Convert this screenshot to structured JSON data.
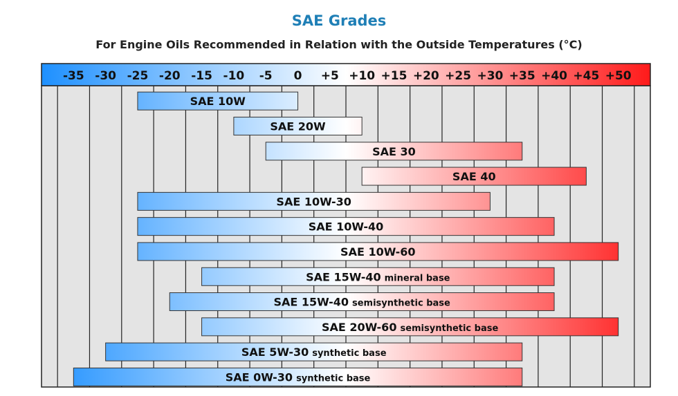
{
  "header": {
    "title": "SAE Grades",
    "subtitle": "For Engine Oils Recommended in Relation with the Outside Temperatures (°C)"
  },
  "chart_data": {
    "type": "bar",
    "orientation": "horizontal-range",
    "title": "SAE Grades",
    "subtitle": "For Engine Oils Recommended in Relation with the Outside Temperatures (°C)",
    "xlim": [
      -40,
      55
    ],
    "ticks": [
      -35,
      -30,
      -25,
      -20,
      -15,
      -10,
      -5,
      0,
      5,
      10,
      15,
      20,
      25,
      30,
      35,
      40,
      45,
      50
    ],
    "tick_labels": [
      "-35",
      "-30",
      "-25",
      "-20",
      "-15",
      "-10",
      "-5",
      "0",
      "+5",
      "+10",
      "+15",
      "+20",
      "+25",
      "+30",
      "+35",
      "+40",
      "+45",
      "+50"
    ],
    "grid": true,
    "colors": {
      "cold": "#1e90ff",
      "neutral": "#ffffff",
      "hot": "#ff1a1a",
      "grid_fill": "#e4e4e4",
      "title": "#1f7fb6"
    },
    "series": [
      {
        "name": "SAE 10W",
        "qualifier": "",
        "min": -25,
        "max": 0
      },
      {
        "name": "SAE 20W",
        "qualifier": "",
        "min": -10,
        "max": 10
      },
      {
        "name": "SAE 30",
        "qualifier": "",
        "min": -5,
        "max": 35
      },
      {
        "name": "SAE 40",
        "qualifier": "",
        "min": 10,
        "max": 45
      },
      {
        "name": "SAE 10W-30",
        "qualifier": "",
        "min": -25,
        "max": 30
      },
      {
        "name": "SAE 10W-40",
        "qualifier": "",
        "min": -25,
        "max": 40
      },
      {
        "name": "SAE 10W-60",
        "qualifier": "",
        "min": -25,
        "max": 50
      },
      {
        "name": "SAE 15W-40",
        "qualifier": "mineral base",
        "min": -15,
        "max": 40
      },
      {
        "name": "SAE 15W-40",
        "qualifier": "semisynthetic base",
        "min": -20,
        "max": 40
      },
      {
        "name": "SAE 20W-60",
        "qualifier": "semisynthetic base",
        "min": -15,
        "max": 50
      },
      {
        "name": "SAE 5W-30",
        "qualifier": "synthetic base",
        "min": -30,
        "max": 35
      },
      {
        "name": "SAE 0W-30",
        "qualifier": "synthetic base",
        "min": -35,
        "max": 35
      }
    ]
  }
}
